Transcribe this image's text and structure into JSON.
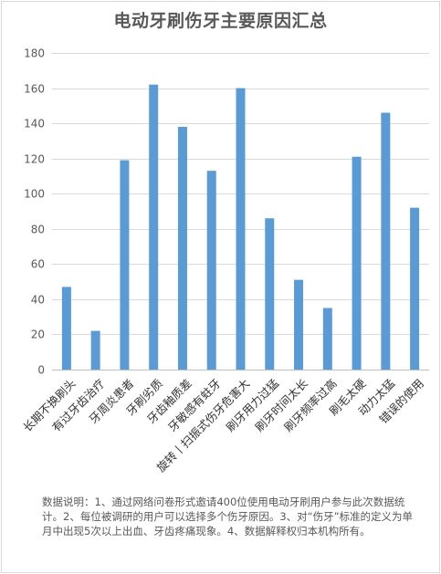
{
  "chart_data": {
    "type": "bar",
    "title": "电动牙刷伤牙主要原因汇总",
    "categories": [
      "长期不换刷头",
      "有过牙齿治疗",
      "牙周炎患者",
      "牙刷劣质",
      "牙齿釉质差",
      "牙敏感有蛀牙",
      "旋转丨扫振式伤牙危害大",
      "刷牙用力过猛",
      "刷牙时间太长",
      "刷牙频率过高",
      "刷毛太硬",
      "动力太猛",
      "错误的使用"
    ],
    "values": [
      47,
      22,
      119,
      162,
      138,
      113,
      160,
      86,
      51,
      35,
      121,
      146,
      92
    ],
    "ylim": [
      0,
      180
    ],
    "yticks": [
      0,
      20,
      40,
      60,
      80,
      100,
      120,
      140,
      160,
      180
    ],
    "xlabel": "",
    "ylabel": "",
    "grid": true,
    "legend": "none",
    "bar_color": "#5b9bd5"
  },
  "note": "数据说明：1、通过网络问卷形式邀请400位使用电动牙刷用户参与此次数据统计。2、每位被调研的用户可以选择多个伤牙原因。3、对“伤牙”标准的定义为单月中出现5次以上出血、牙齿疼痛现象。4、数据解释权归本机构所有。"
}
